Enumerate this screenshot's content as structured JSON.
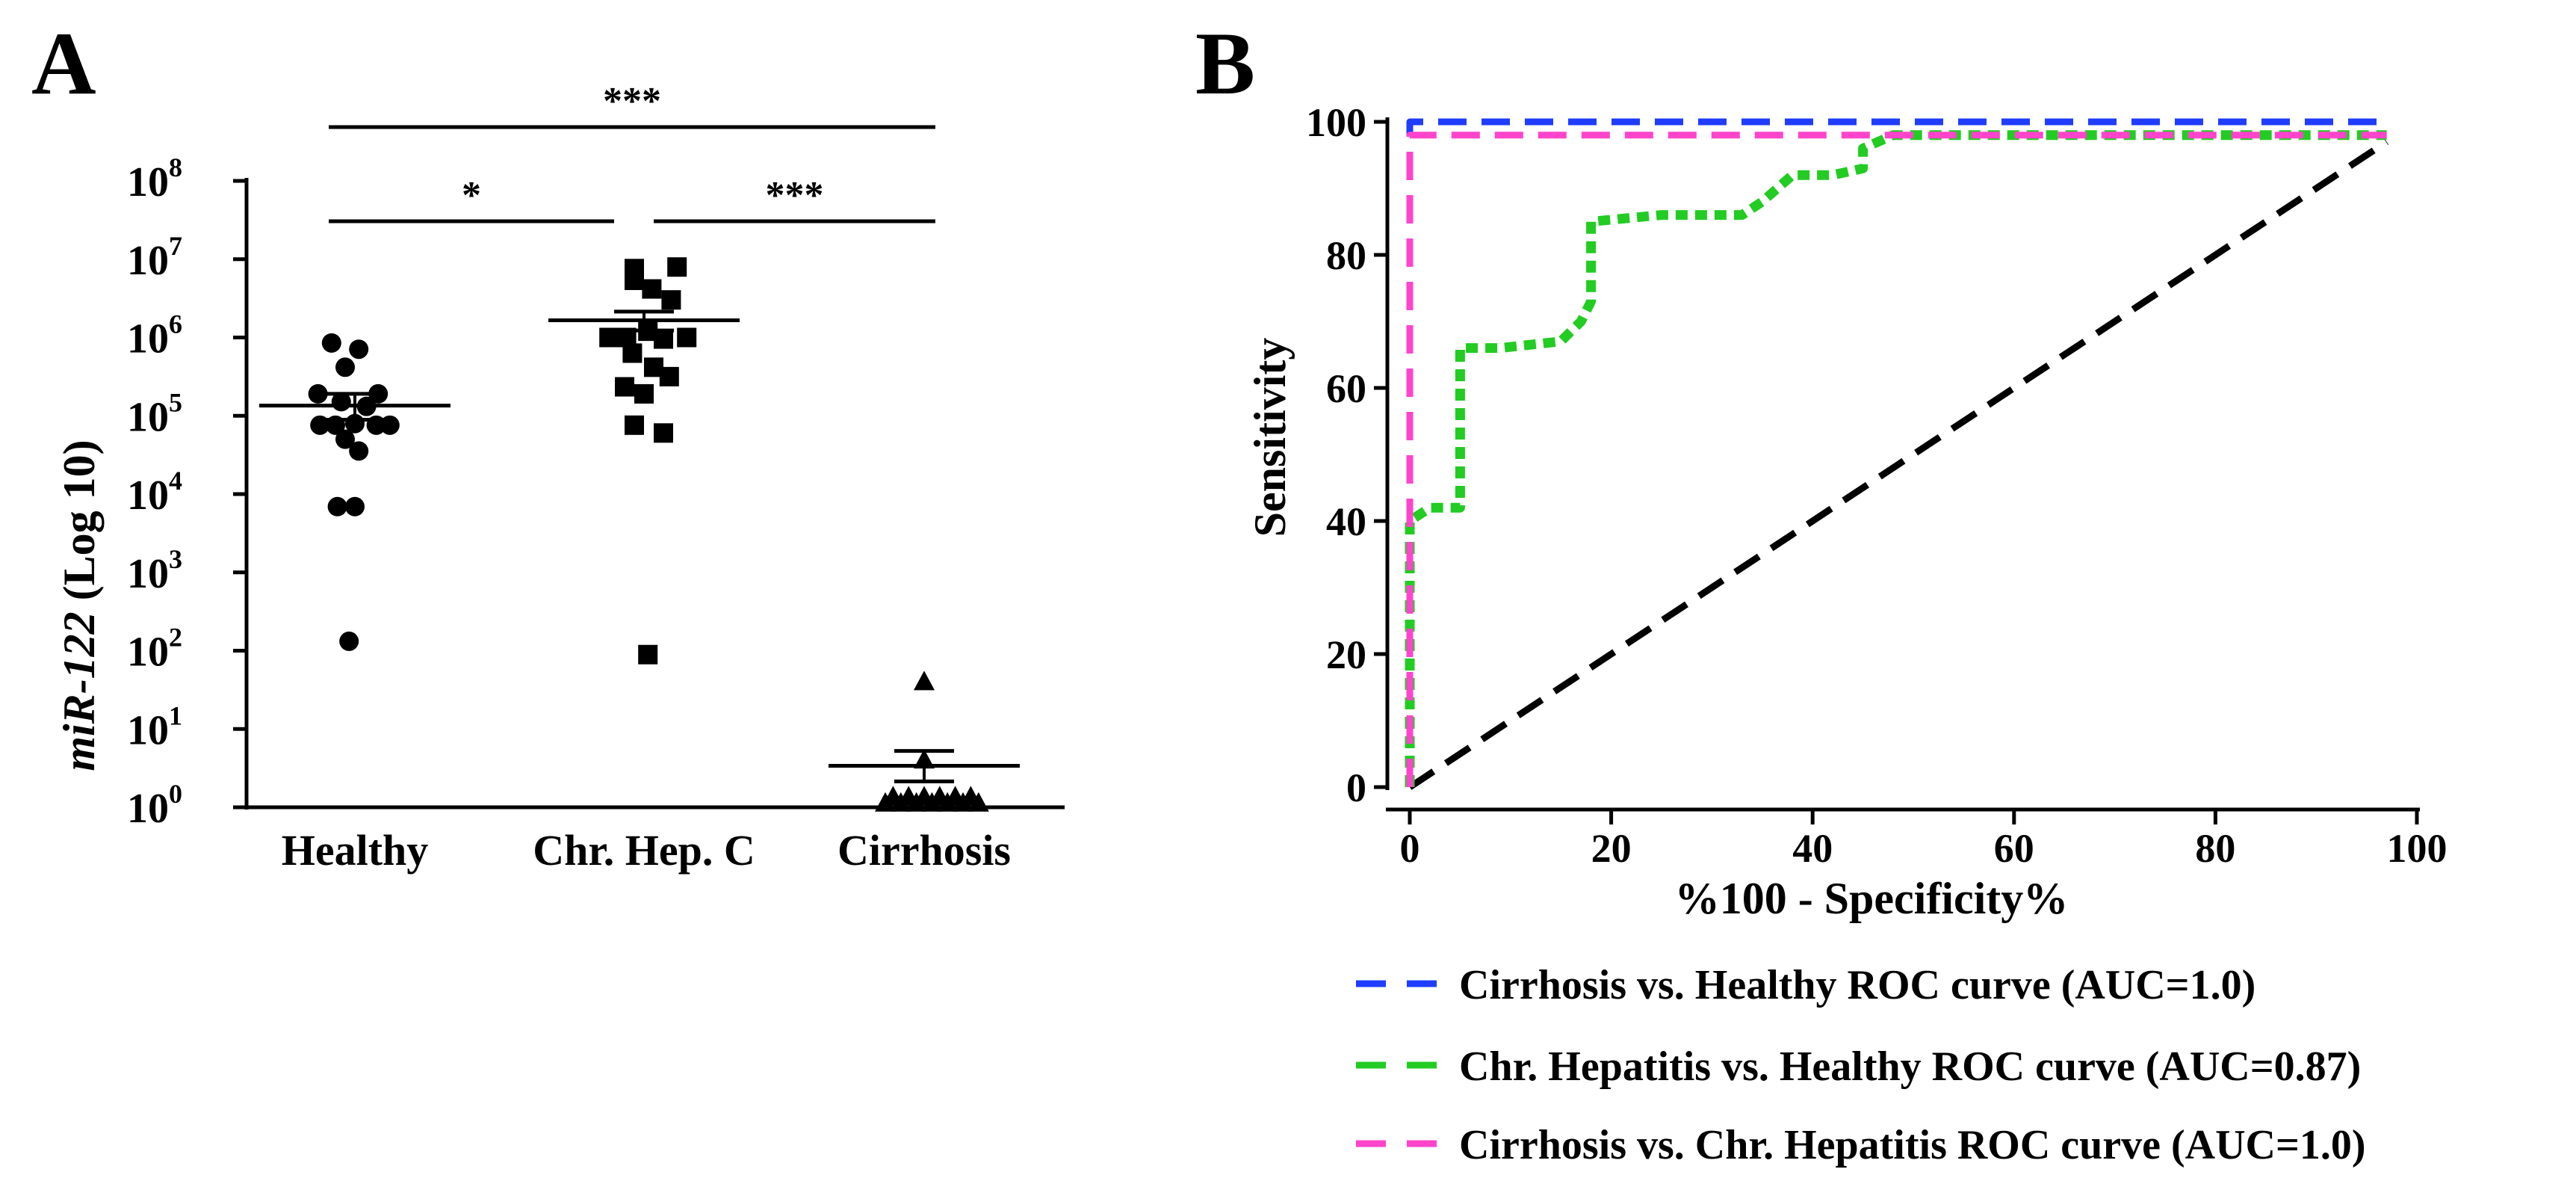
{
  "chart_data": [
    {
      "panel_label": "A",
      "type": "scatter",
      "yscale": "log10",
      "ylabel_italic": "miR-122",
      "ylabel_rest": " (Log 10)",
      "y_ticks": [
        {
          "exp": 0,
          "base": "10",
          "sup": "0"
        },
        {
          "exp": 1,
          "base": "10",
          "sup": "1"
        },
        {
          "exp": 2,
          "base": "10",
          "sup": "2"
        },
        {
          "exp": 3,
          "base": "10",
          "sup": "3"
        },
        {
          "exp": 4,
          "base": "10",
          "sup": "4"
        },
        {
          "exp": 5,
          "base": "10",
          "sup": "5"
        },
        {
          "exp": 6,
          "base": "10",
          "sup": "6"
        },
        {
          "exp": 7,
          "base": "10",
          "sup": "7"
        },
        {
          "exp": 8,
          "base": "10",
          "sup": "8"
        }
      ],
      "ylim_log": [
        0,
        8
      ],
      "categories": [
        "Healthy",
        "Chr. Hep. C",
        "Cirrhosis"
      ],
      "groups": [
        {
          "name": "Healthy",
          "marker": "circle",
          "mean_log": 5.13,
          "sem_upper_log": 5.28,
          "sem_lower_log": 4.95,
          "points": [
            [
              -0.12,
              5.93
            ],
            [
              0.02,
              5.85
            ],
            [
              -0.05,
              5.62
            ],
            [
              -0.19,
              5.28
            ],
            [
              0.12,
              5.28
            ],
            [
              -0.07,
              5.18
            ],
            [
              0.06,
              5.12
            ],
            [
              -0.18,
              4.88
            ],
            [
              -0.1,
              4.88
            ],
            [
              0.0,
              4.9
            ],
            [
              0.11,
              4.88
            ],
            [
              0.18,
              4.88
            ],
            [
              -0.05,
              4.7
            ],
            [
              0.02,
              4.55
            ],
            [
              -0.09,
              3.84
            ],
            [
              0.0,
              3.84
            ],
            [
              -0.03,
              2.12
            ]
          ]
        },
        {
          "name": "Chr. Hep. C",
          "marker": "square",
          "mean_log": 6.22,
          "sem_upper_log": 6.33,
          "sem_lower_log": 6.09,
          "points": [
            [
              -0.05,
              6.88
            ],
            [
              0.17,
              6.9
            ],
            [
              -0.05,
              6.73
            ],
            [
              0.04,
              6.62
            ],
            [
              0.14,
              6.48
            ],
            [
              -0.18,
              6.0
            ],
            [
              -0.09,
              6.0
            ],
            [
              0.02,
              6.08
            ],
            [
              0.1,
              5.98
            ],
            [
              0.22,
              6.0
            ],
            [
              -0.06,
              5.8
            ],
            [
              0.05,
              5.62
            ],
            [
              0.13,
              5.5
            ],
            [
              -0.1,
              5.37
            ],
            [
              0.0,
              5.28
            ],
            [
              -0.05,
              4.88
            ],
            [
              0.1,
              4.78
            ],
            [
              0.02,
              1.95
            ]
          ]
        },
        {
          "name": "Cirrhosis",
          "marker": "triangle",
          "mean_log": 0.53,
          "sem_upper_log": 0.72,
          "sem_lower_log": 0.33,
          "points": [
            [
              0.0,
              1.6
            ],
            [
              0.0,
              0.6
            ],
            [
              -0.2,
              0.05
            ],
            [
              -0.12,
              0.05
            ],
            [
              -0.04,
              0.05
            ],
            [
              0.04,
              0.05
            ],
            [
              0.12,
              0.05
            ],
            [
              0.2,
              0.05
            ],
            [
              0.28,
              0.05
            ],
            [
              -0.16,
              0.13
            ],
            [
              -0.08,
              0.13
            ],
            [
              0.0,
              0.13
            ],
            [
              0.08,
              0.13
            ],
            [
              0.16,
              0.13
            ],
            [
              0.24,
              0.13
            ]
          ]
        }
      ],
      "significance": [
        {
          "from": 0,
          "to": 1,
          "label": "*"
        },
        {
          "from": 1,
          "to": 2,
          "label": "***"
        },
        {
          "from": 0,
          "to": 2,
          "label": "***"
        }
      ]
    },
    {
      "panel_label": "B",
      "type": "line",
      "xlabel": "%100 - Specificity%",
      "ylabel": "Sensitivity",
      "xlim": [
        0,
        100
      ],
      "ylim": [
        0,
        100
      ],
      "x_ticks": [
        "0",
        "20",
        "40",
        "60",
        "80",
        "100"
      ],
      "y_ticks": [
        "0",
        "20",
        "40",
        "60",
        "80",
        "100"
      ],
      "series": [
        {
          "name": "Cirrhosis vs. Healthy ROC curve (AUC=1.0)",
          "color": "#1f3cff",
          "dash": "long",
          "x": [
            0,
            0,
            97
          ],
          "y": [
            0,
            100,
            100
          ]
        },
        {
          "name": "Chr. Hepatitis vs. Healthy ROC curve (AUC=0.87)",
          "color": "#22cc22",
          "dash": "dotted",
          "x": [
            0,
            0,
            2,
            5,
            5,
            9,
            15,
            17,
            18,
            18,
            25,
            33,
            35,
            38,
            42,
            45,
            45,
            48,
            55,
            97
          ],
          "y": [
            0,
            40,
            42,
            42,
            66,
            66,
            67,
            70,
            73,
            85,
            86,
            86,
            88,
            92,
            92,
            93,
            96,
            98,
            98,
            98
          ]
        },
        {
          "name": "Cirrhosis vs. Chr. Hepatitis ROC curve (AUC=1.0)",
          "color": "#ff44cc",
          "dash": "long",
          "x": [
            0,
            0,
            97
          ],
          "y": [
            0,
            98,
            98
          ]
        },
        {
          "name": "Reference line",
          "color": "#000000",
          "dash": "long",
          "x": [
            0,
            97
          ],
          "y": [
            0,
            97
          ]
        }
      ],
      "legend": [
        {
          "label": "Cirrhosis vs. Healthy ROC curve (AUC=1.0)",
          "color": "#1f3cff"
        },
        {
          "label": "Chr. Hepatitis vs. Healthy ROC curve (AUC=0.87)",
          "color": "#22cc22"
        },
        {
          "label": "Cirrhosis vs. Chr. Hepatitis ROC curve (AUC=1.0)",
          "color": "#ff44cc"
        }
      ]
    }
  ]
}
